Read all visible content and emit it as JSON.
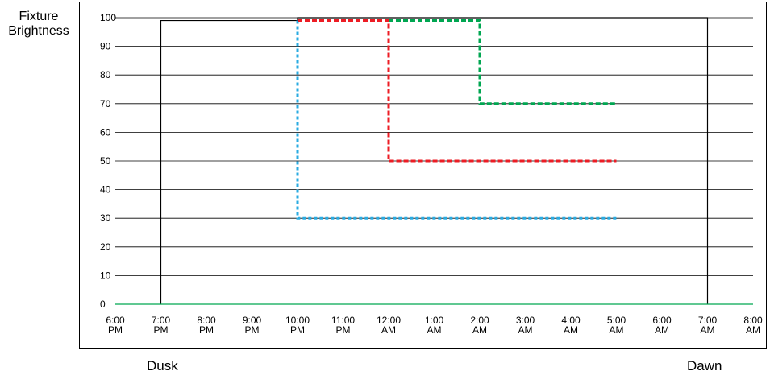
{
  "chart_data": {
    "type": "line",
    "ylabel": [
      "Fixture",
      "Brightness"
    ],
    "xlabel": "",
    "ylim": [
      0,
      100
    ],
    "yticks": [
      0,
      10,
      20,
      30,
      40,
      50,
      60,
      70,
      80,
      90,
      100
    ],
    "x_ticks": [
      {
        "hour": 18,
        "line1": "6:00",
        "line2": "PM"
      },
      {
        "hour": 19,
        "line1": "7:00",
        "line2": "PM"
      },
      {
        "hour": 20,
        "line1": "8:00",
        "line2": "PM"
      },
      {
        "hour": 21,
        "line1": "9:00",
        "line2": "PM"
      },
      {
        "hour": 22,
        "line1": "10:00",
        "line2": "PM"
      },
      {
        "hour": 23,
        "line1": "11:00",
        "line2": "PM"
      },
      {
        "hour": 24,
        "line1": "12:00",
        "line2": "AM"
      },
      {
        "hour": 25,
        "line1": "1:00",
        "line2": "AM"
      },
      {
        "hour": 26,
        "line1": "2:00",
        "line2": "AM"
      },
      {
        "hour": 27,
        "line1": "3:00",
        "line2": "AM"
      },
      {
        "hour": 28,
        "line1": "4:00",
        "line2": "AM"
      },
      {
        "hour": 29,
        "line1": "5:00",
        "line2": "AM"
      },
      {
        "hour": 30,
        "line1": "6:00",
        "line2": "AM"
      },
      {
        "hour": 31,
        "line1": "7:00",
        "line2": "AM"
      },
      {
        "hour": 32,
        "line1": "8:00",
        "line2": "AM"
      }
    ],
    "grid": true,
    "series": [
      {
        "color": "#000000",
        "style": "solid",
        "points": [
          [
            19,
            0
          ],
          [
            19,
            99
          ],
          [
            22,
            99
          ],
          [
            22,
            100
          ],
          [
            29,
            100
          ],
          [
            31,
            100
          ],
          [
            31,
            0
          ]
        ]
      },
      {
        "color": "#00a651",
        "style": "solid",
        "points": [
          [
            18,
            0
          ],
          [
            32,
            0
          ]
        ]
      },
      {
        "color": "#29abe2",
        "style": "dotted",
        "points": [
          [
            22,
            99
          ],
          [
            22,
            30
          ],
          [
            29,
            30
          ]
        ]
      },
      {
        "color": "#ed1c24",
        "style": "dashed",
        "points": [
          [
            22,
            99
          ],
          [
            24,
            99
          ],
          [
            24,
            50
          ],
          [
            29,
            50
          ]
        ]
      },
      {
        "color": "#00a651",
        "style": "dashed",
        "points": [
          [
            24,
            99
          ],
          [
            26,
            99
          ],
          [
            26,
            70
          ],
          [
            29,
            70
          ]
        ]
      }
    ],
    "annotations": {
      "dusk": "Dusk",
      "dawn": "Dawn"
    }
  }
}
